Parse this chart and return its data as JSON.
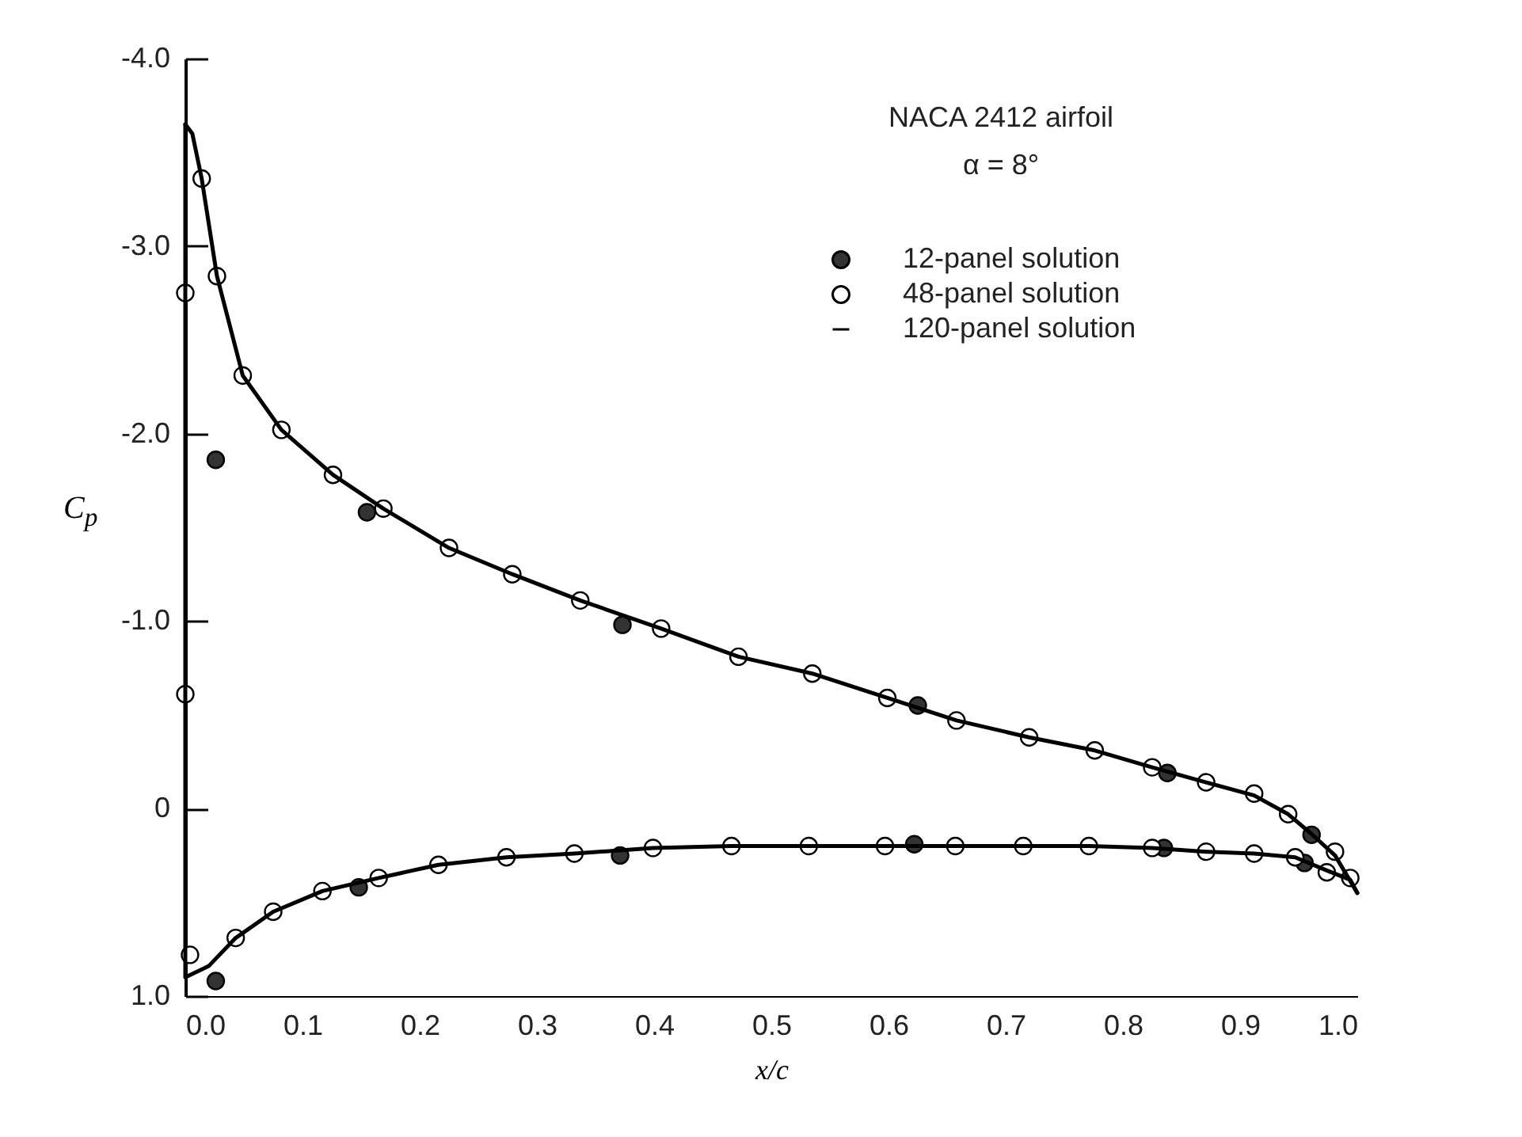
{
  "chart_data": {
    "type": "scatter",
    "xlabel": "x/c",
    "ylabel": "C$_{p}$",
    "annotations": [
      "NACA 2412 airfoil",
      "α = 8°"
    ],
    "xlim": [
      0,
      1
    ],
    "xticks": [
      {
        "value": 0,
        "label": "0.0"
      },
      0.1,
      0.2,
      0.3,
      0.4,
      0.5,
      0.6,
      0.7,
      0.8,
      0.9,
      {
        "value": 1,
        "label": "1.0"
      }
    ],
    "ylim": [
      1,
      -4
    ],
    "yticks": [
      {
        "value": -4,
        "label": "-4.0"
      },
      {
        "value": -3,
        "label": "-3.0"
      },
      {
        "value": -2,
        "label": "-2.0"
      },
      {
        "value": -1,
        "label": "-1.0"
      },
      0,
      {
        "value": 1,
        "label": "1.0"
      }
    ],
    "legend": "top right",
    "grid": false,
    "series": [
      {
        "name": "12-panel solution",
        "color": "#333333",
        "x": [
          0.026,
          0.155,
          0.373,
          0.625,
          0.838,
          0.961,
          0.026,
          0.148,
          0.371,
          0.622,
          0.835,
          0.955
        ],
        "values": [
          -1.86,
          -1.58,
          -0.98,
          -0.55,
          -0.19,
          0.14,
          0.92,
          0.42,
          0.25,
          0.19,
          0.21,
          0.29
        ]
      },
      {
        "name": "48-panel solution",
        "color": "#ffffff",
        "x": [
          0,
          0.014,
          0.027,
          0.049,
          0.082,
          0.126,
          0.169,
          0.225,
          0.279,
          0.337,
          0.406,
          0.472,
          0.535,
          0.599,
          0.658,
          0.72,
          0.776,
          0.825,
          0.871,
          0.912,
          0.941,
          0.981,
          0,
          0.004,
          0.043,
          0.075,
          0.117,
          0.165,
          0.216,
          0.274,
          0.332,
          0.399,
          0.466,
          0.532,
          0.597,
          0.657,
          0.715,
          0.771,
          0.825,
          0.871,
          0.912,
          0.947,
          0.974,
          0.994
        ],
        "values": [
          -2.75,
          -3.36,
          -2.84,
          -2.31,
          -2.02,
          -1.78,
          -1.6,
          -1.39,
          -1.25,
          -1.11,
          -0.96,
          -0.81,
          -0.72,
          -0.59,
          -0.47,
          -0.38,
          -0.31,
          -0.22,
          -0.14,
          -0.08,
          0.03,
          0.23,
          -0.61,
          0.78,
          0.69,
          0.55,
          0.44,
          0.37,
          0.3,
          0.26,
          0.24,
          0.21,
          0.2,
          0.2,
          0.2,
          0.2,
          0.2,
          0.2,
          0.21,
          0.23,
          0.24,
          0.26,
          0.34,
          0.37
        ]
      },
      {
        "name": "120-panel solution",
        "type": "line",
        "color": "#000000",
        "x": [
          0,
          0.006,
          0.014,
          0.027,
          0.049,
          0.082,
          0.126,
          0.169,
          0.225,
          0.279,
          0.337,
          0.406,
          0.472,
          0.535,
          0.599,
          0.658,
          0.72,
          0.776,
          0.825,
          0.871,
          0.912,
          0.941,
          0.96,
          0.981,
          1
        ],
        "values": [
          -3.65,
          -3.6,
          -3.36,
          -2.84,
          -2.31,
          -2.02,
          -1.78,
          -1.6,
          -1.39,
          -1.25,
          -1.11,
          -0.96,
          -0.81,
          -0.72,
          -0.59,
          -0.47,
          -0.38,
          -0.31,
          -0.22,
          -0.14,
          -0.07,
          0.03,
          0.13,
          0.25,
          0.45
        ]
      },
      {
        "type": "line",
        "color": "#000000",
        "x": [
          0,
          0,
          0.02,
          0.043,
          0.075,
          0.117,
          0.165,
          0.216,
          0.274,
          0.332,
          0.399,
          0.466,
          0.6,
          0.771,
          0.825,
          0.871,
          0.912,
          0.947,
          0.974,
          0.994,
          1
        ],
        "values": [
          -3.65,
          0.9,
          0.84,
          0.69,
          0.55,
          0.44,
          0.37,
          0.3,
          0.26,
          0.24,
          0.21,
          0.2,
          0.2,
          0.2,
          0.21,
          0.23,
          0.24,
          0.26,
          0.33,
          0.38,
          0.45
        ]
      }
    ]
  }
}
